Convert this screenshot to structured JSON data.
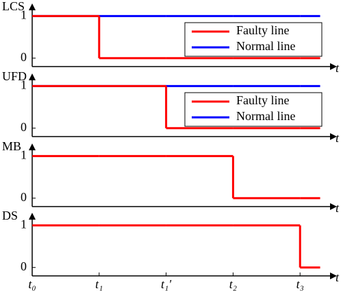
{
  "chart_data": [
    {
      "type": "step",
      "ylabel": "LCS",
      "xlabel": "t",
      "x": [
        0,
        1,
        2,
        3,
        4,
        4.3
      ],
      "series": [
        {
          "name": "Faulty line",
          "color": "#ff0000",
          "values": [
            1,
            0,
            0,
            0,
            0,
            0
          ]
        },
        {
          "name": "Normal line",
          "color": "#0000ff",
          "values": [
            1,
            1,
            1,
            1,
            1,
            1
          ]
        }
      ],
      "xlim": [
        0,
        4.55
      ],
      "ylim": [
        -0.2,
        1.3
      ],
      "yticks": [
        0,
        1
      ],
      "legend": "upper right"
    },
    {
      "type": "step",
      "ylabel": "UFD",
      "xlabel": "t",
      "x": [
        0,
        1,
        2,
        3,
        4,
        4.3
      ],
      "series": [
        {
          "name": "Faulty line",
          "color": "#ff0000",
          "values": [
            1,
            1,
            0,
            0,
            0,
            0
          ]
        },
        {
          "name": "Normal line",
          "color": "#0000ff",
          "values": [
            1,
            1,
            1,
            1,
            1,
            1
          ]
        }
      ],
      "xlim": [
        0,
        4.55
      ],
      "ylim": [
        -0.2,
        1.3
      ],
      "yticks": [
        0,
        1
      ],
      "legend": "upper right"
    },
    {
      "type": "step",
      "ylabel": "MB",
      "xlabel": "t",
      "x": [
        0,
        1,
        2,
        3,
        4,
        4.3
      ],
      "series": [
        {
          "name": "MB",
          "color": "#ff0000",
          "values": [
            1,
            1,
            1,
            0,
            0,
            0
          ]
        }
      ],
      "xlim": [
        0,
        4.55
      ],
      "ylim": [
        -0.2,
        1.3
      ],
      "yticks": [
        0,
        1
      ]
    },
    {
      "type": "step",
      "ylabel": "DS",
      "xlabel": "t",
      "x": [
        0,
        1,
        2,
        3,
        4,
        4.3
      ],
      "series": [
        {
          "name": "DS",
          "color": "#ff0000",
          "values": [
            1,
            1,
            1,
            1,
            0,
            0
          ]
        }
      ],
      "xlim": [
        0,
        4.55
      ],
      "ylim": [
        -0.2,
        1.3
      ],
      "yticks": [
        0,
        1
      ],
      "xticks": [
        {
          "value": 0,
          "label": "t₀"
        },
        {
          "value": 1,
          "label": "t₁"
        },
        {
          "value": 2,
          "label": "t₁'"
        },
        {
          "value": 3,
          "label": "t₂"
        },
        {
          "value": 4,
          "label": "t₃"
        }
      ]
    }
  ]
}
